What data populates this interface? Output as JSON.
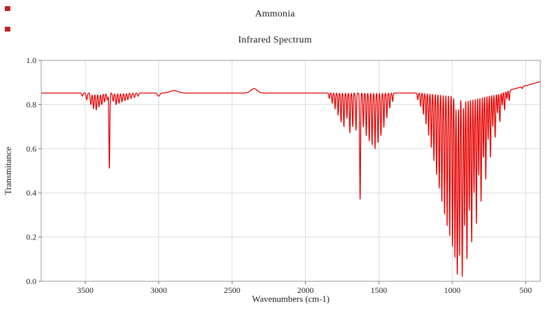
{
  "page": {
    "title": "Ammonia",
    "subtitle": "Infrared Spectrum"
  },
  "decor": {
    "marker_color": "#c42020"
  },
  "chart_data": {
    "type": "line",
    "title": "Ammonia",
    "subtitle": "Infrared Spectrum",
    "xlabel": "Wavenumbers (cm-1)",
    "ylabel": "Transmitance",
    "x_reversed": true,
    "xlim": [
      3800,
      400
    ],
    "ylim": [
      0,
      1
    ],
    "x_ticks": [
      3500,
      3000,
      2500,
      2000,
      1500,
      1000,
      500
    ],
    "y_ticks": [
      0,
      0.2,
      0.4,
      0.6,
      0.8,
      1
    ],
    "grid": true,
    "legend": "none",
    "line_color": "#e80000",
    "grid_color": "#d9d9d9",
    "frame_color": "#9a9a9a",
    "tick_color": "#666666",
    "baseline_transmittance": 0.852,
    "right_edge": {
      "start_wavenumber": 680,
      "end_wavenumber": 400,
      "end_transmittance": 0.904
    },
    "bumps_note": "broad weak raised features: [center_cm-1, amplitude, sigma_cm-1]",
    "bumps": [
      [
        2350,
        0.02,
        22
      ],
      [
        2895,
        0.011,
        28
      ]
    ],
    "peaks_note": "absorption lines: [center_cm-1, min_transmittance, sigma_cm-1]",
    "peaks": [
      [
        3520,
        0.838,
        4
      ],
      [
        3490,
        0.822,
        4
      ],
      [
        3462,
        0.8,
        4
      ],
      [
        3444,
        0.782,
        4
      ],
      [
        3425,
        0.776,
        4
      ],
      [
        3406,
        0.79,
        4
      ],
      [
        3388,
        0.8,
        4
      ],
      [
        3369,
        0.812,
        4
      ],
      [
        3350,
        0.82,
        4
      ],
      [
        3336,
        0.512,
        3
      ],
      [
        3310,
        0.815,
        4
      ],
      [
        3290,
        0.8,
        4
      ],
      [
        3270,
        0.806,
        4
      ],
      [
        3250,
        0.812,
        4
      ],
      [
        3230,
        0.818,
        4
      ],
      [
        3210,
        0.822,
        4
      ],
      [
        3188,
        0.827,
        4
      ],
      [
        3165,
        0.832,
        4
      ],
      [
        3140,
        0.838,
        4
      ],
      [
        3000,
        0.838,
        8
      ],
      [
        1838,
        0.828,
        3
      ],
      [
        1818,
        0.806,
        3
      ],
      [
        1798,
        0.78,
        3
      ],
      [
        1778,
        0.752,
        3
      ],
      [
        1758,
        0.722,
        3
      ],
      [
        1738,
        0.7,
        3
      ],
      [
        1718,
        0.738,
        3
      ],
      [
        1698,
        0.672,
        3
      ],
      [
        1678,
        0.7,
        3
      ],
      [
        1656,
        0.684,
        3
      ],
      [
        1628,
        0.372,
        3
      ],
      [
        1606,
        0.7,
        3
      ],
      [
        1586,
        0.66,
        3
      ],
      [
        1566,
        0.636,
        3
      ],
      [
        1546,
        0.618,
        3
      ],
      [
        1526,
        0.6,
        3
      ],
      [
        1506,
        0.628,
        3
      ],
      [
        1486,
        0.66,
        3
      ],
      [
        1466,
        0.698,
        3
      ],
      [
        1446,
        0.74,
        3
      ],
      [
        1426,
        0.784,
        3
      ],
      [
        1406,
        0.814,
        3
      ],
      [
        1235,
        0.822,
        3
      ],
      [
        1216,
        0.792,
        3
      ],
      [
        1197,
        0.756,
        3
      ],
      [
        1179,
        0.712,
        3
      ],
      [
        1161,
        0.662,
        3
      ],
      [
        1143,
        0.606,
        3
      ],
      [
        1125,
        0.546,
        3
      ],
      [
        1107,
        0.484,
        3
      ],
      [
        1089,
        0.422,
        3
      ],
      [
        1071,
        0.362,
        3
      ],
      [
        1053,
        0.304,
        3
      ],
      [
        1035,
        0.252,
        3
      ],
      [
        1017,
        0.206,
        3
      ],
      [
        999,
        0.158,
        3
      ],
      [
        982,
        0.108,
        3
      ],
      [
        966,
        0.032,
        3.5
      ],
      [
        950,
        0.118,
        3
      ],
      [
        932,
        0.022,
        3.5
      ],
      [
        916,
        0.252,
        3
      ],
      [
        900,
        0.102,
        3
      ],
      [
        884,
        0.322,
        3
      ],
      [
        868,
        0.178,
        3
      ],
      [
        852,
        0.402,
        3
      ],
      [
        836,
        0.262,
        3
      ],
      [
        820,
        0.482,
        3
      ],
      [
        804,
        0.362,
        3
      ],
      [
        788,
        0.562,
        3
      ],
      [
        772,
        0.462,
        3
      ],
      [
        756,
        0.642,
        3
      ],
      [
        740,
        0.562,
        3
      ],
      [
        724,
        0.702,
        3
      ],
      [
        708,
        0.652,
        3
      ],
      [
        692,
        0.762,
        3
      ],
      [
        676,
        0.722,
        3
      ],
      [
        660,
        0.798,
        3
      ],
      [
        644,
        0.776,
        3
      ],
      [
        628,
        0.826,
        3
      ],
      [
        612,
        0.818,
        3
      ],
      [
        560,
        0.878,
        3
      ],
      [
        524,
        0.872,
        3
      ],
      [
        488,
        0.886,
        3
      ]
    ]
  }
}
